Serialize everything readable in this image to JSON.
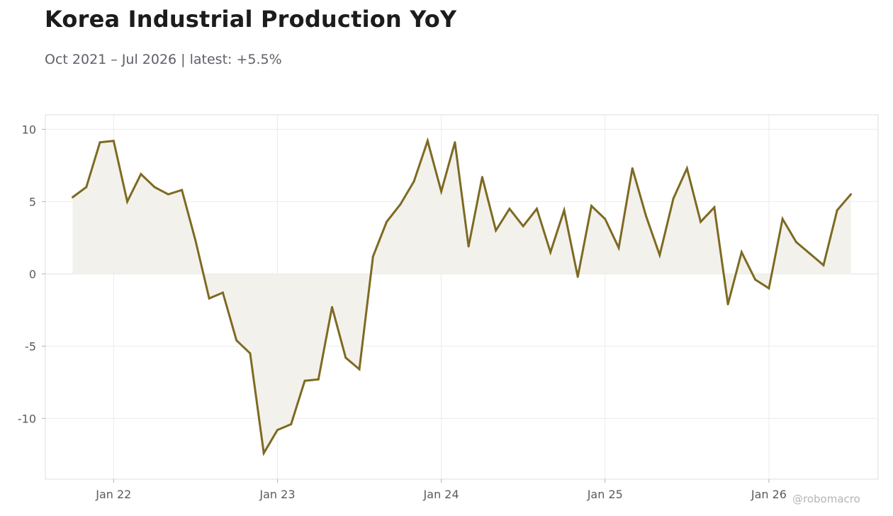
{
  "header": {
    "title": "Korea Industrial Production YoY",
    "subtitle": "Oct 2021 – Jul 2026 | latest: +5.5%"
  },
  "watermark": "@robomacro",
  "colors": {
    "line": "#7d6a22",
    "area_fill": "#f3f1eb",
    "grid": "#ececec",
    "frame": "#dcdcdc",
    "zero_line": "#e2e2e2",
    "tick_text": "#5a5a60"
  },
  "chart_data": {
    "type": "area",
    "x_start": "2021-10",
    "x_end": "2026-07",
    "frequency": "monthly",
    "x": [
      "2021-10",
      "2021-11",
      "2021-12",
      "2022-01",
      "2022-02",
      "2022-03",
      "2022-04",
      "2022-05",
      "2022-06",
      "2022-07",
      "2022-08",
      "2022-09",
      "2022-10",
      "2022-11",
      "2022-12",
      "2023-01",
      "2023-02",
      "2023-03",
      "2023-04",
      "2023-05",
      "2023-06",
      "2023-07",
      "2023-08",
      "2023-09",
      "2023-10",
      "2023-11",
      "2023-12",
      "2024-01",
      "2024-02",
      "2024-03",
      "2024-04",
      "2024-05",
      "2024-06",
      "2024-07",
      "2024-08",
      "2024-09",
      "2024-10",
      "2024-11",
      "2024-12",
      "2025-01",
      "2025-02",
      "2025-03",
      "2025-04",
      "2025-05",
      "2025-06",
      "2025-07",
      "2025-08",
      "2025-09",
      "2025-10",
      "2025-11",
      "2025-12",
      "2026-01",
      "2026-02",
      "2026-03",
      "2026-04",
      "2026-05",
      "2026-06",
      "2026-07"
    ],
    "values": [
      5.3,
      6.0,
      9.1,
      9.2,
      5.0,
      6.9,
      6.0,
      5.5,
      5.8,
      2.3,
      -1.7,
      -1.3,
      -4.6,
      -5.5,
      -12.4,
      -10.8,
      -10.4,
      -7.4,
      -7.3,
      -2.3,
      -5.8,
      -6.6,
      1.2,
      3.6,
      4.8,
      6.4,
      9.2,
      5.7,
      9.1,
      1.9,
      6.7,
      3.0,
      4.5,
      3.3,
      4.5,
      1.5,
      4.4,
      -0.2,
      4.7,
      3.8,
      1.8,
      7.3,
      4.0,
      1.3,
      5.2,
      7.3,
      3.6,
      4.6,
      -2.1,
      1.5,
      -0.4,
      -1.0,
      3.8,
      2.2,
      1.4,
      0.6,
      4.4,
      5.5
    ],
    "x_ticks": [
      {
        "date": "2022-01",
        "label": "Jan 22"
      },
      {
        "date": "2023-01",
        "label": "Jan 23"
      },
      {
        "date": "2024-01",
        "label": "Jan 24"
      },
      {
        "date": "2025-01",
        "label": "Jan 25"
      },
      {
        "date": "2026-01",
        "label": "Jan 26"
      }
    ],
    "y_ticks": [
      {
        "value": 10,
        "label": "10"
      },
      {
        "value": 5,
        "label": "5"
      },
      {
        "value": 0,
        "label": "0"
      },
      {
        "value": -5,
        "label": "-5"
      },
      {
        "value": -10,
        "label": "-10"
      }
    ],
    "xlim": [
      "2021-08",
      "2026-09"
    ],
    "ylim": [
      -14.2,
      11.0
    ],
    "grid": true,
    "baseline": 0
  }
}
